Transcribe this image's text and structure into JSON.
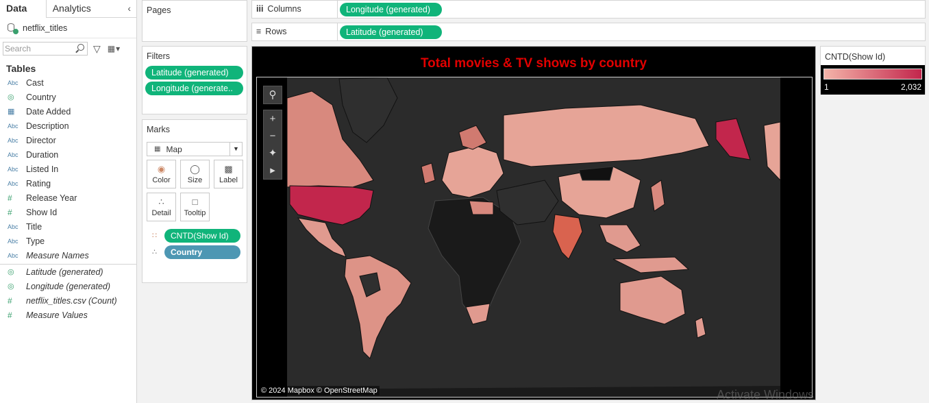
{
  "left_pane": {
    "tabs": [
      "Data",
      "Analytics"
    ],
    "datasource": "netflix_titles",
    "search_placeholder": "Search",
    "tables_header": "Tables",
    "fields": [
      {
        "name": "Cast",
        "type": "abc"
      },
      {
        "name": "Country",
        "type": "globe"
      },
      {
        "name": "Date Added",
        "type": "calendar"
      },
      {
        "name": "Description",
        "type": "abc"
      },
      {
        "name": "Director",
        "type": "abc"
      },
      {
        "name": "Duration",
        "type": "abc"
      },
      {
        "name": "Listed In",
        "type": "abc"
      },
      {
        "name": "Rating",
        "type": "abc"
      },
      {
        "name": "Release Year",
        "type": "number"
      },
      {
        "name": "Show Id",
        "type": "number"
      },
      {
        "name": "Title",
        "type": "abc"
      },
      {
        "name": "Type",
        "type": "abc"
      },
      {
        "name": "Measure Names",
        "type": "abc"
      }
    ],
    "measures": [
      {
        "name": "Latitude (generated)",
        "type": "globe"
      },
      {
        "name": "Longitude (generated)",
        "type": "globe"
      },
      {
        "name": "netflix_titles.csv (Count)",
        "type": "number"
      },
      {
        "name": "Measure Values",
        "type": "number"
      }
    ]
  },
  "pages": {
    "title": "Pages"
  },
  "filters": {
    "title": "Filters",
    "items": [
      "Latitude (generated)",
      "Longitude (generate.."
    ]
  },
  "marks": {
    "title": "Marks",
    "mark_type": "Map",
    "buttons": [
      "Color",
      "Size",
      "Label",
      "Detail",
      "Tooltip"
    ],
    "fields": [
      {
        "label": "CNTD(Show Id)",
        "kind": "color"
      },
      {
        "label": "Country",
        "kind": "detail"
      }
    ]
  },
  "shelves": {
    "columns_label": "Columns",
    "columns_pill": "Longitude (generated)",
    "rows_label": "Rows",
    "rows_pill": "Latitude (generated)"
  },
  "viz": {
    "title": "Total movies & TV shows by country",
    "attribution": "© 2024 Mapbox © OpenStreetMap",
    "colors": {
      "low": "#f4b4a9",
      "high": "#c2264c",
      "title": "#e10000"
    }
  },
  "legend": {
    "title": "CNTD(Show Id)",
    "min": "1",
    "max": "2,032"
  },
  "watermark": "Activate Windows"
}
